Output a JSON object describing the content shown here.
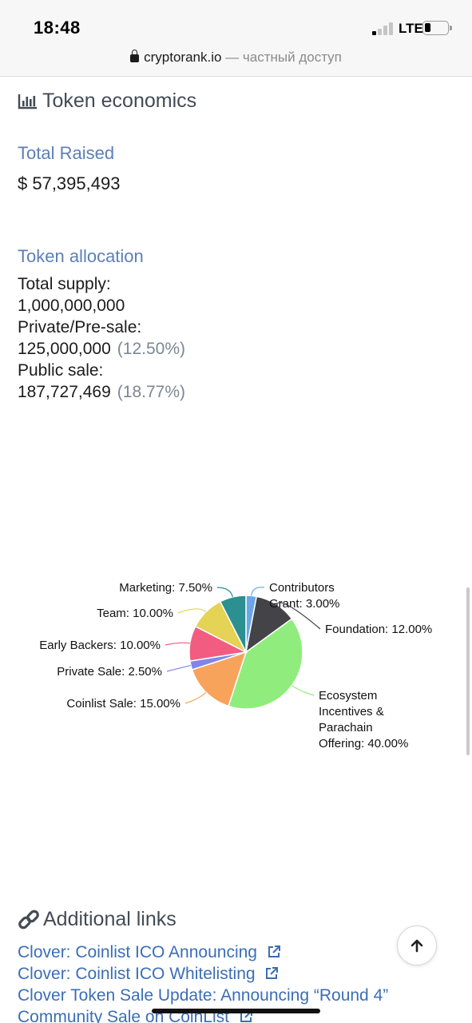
{
  "status_bar": {
    "time": "18:48",
    "network": "LTE"
  },
  "address_bar": {
    "domain": "cryptorank.io",
    "private_note": "— частный доступ"
  },
  "token_economics": {
    "title": "Token economics",
    "icon": "bar-chart-icon",
    "total_raised_label": "Total Raised",
    "total_raised_value": "$ 57,395,493",
    "token_allocation_label": "Token allocation",
    "total_supply_label": "Total supply:",
    "total_supply_value": "1,000,000,000",
    "private_presale_label": "Private/Pre-sale:",
    "private_presale_value": "125,000,000",
    "private_presale_pct": "(12.50%)",
    "public_sale_label": "Public sale:",
    "public_sale_value": "187,727,469",
    "public_sale_pct": "(18.77%)"
  },
  "chart_data": {
    "type": "pie",
    "slices": [
      {
        "label": "Contributors Grant: 3.00%",
        "value": 3.0,
        "color": "#6aa6e8"
      },
      {
        "label": "Foundation: 12.00%",
        "value": 12.0,
        "color": "#434348"
      },
      {
        "label": "Ecosystem Incentives & Parachain Offering: 40.00%",
        "value": 40.0,
        "color": "#90ed7d"
      },
      {
        "label": "Coinlist Sale: 15.00%",
        "value": 15.0,
        "color": "#f7a35c"
      },
      {
        "label": "Private Sale: 2.50%",
        "value": 2.5,
        "color": "#8085e9"
      },
      {
        "label": "Early Backers: 10.00%",
        "value": 10.0,
        "color": "#f15c80"
      },
      {
        "label": "Team: 10.00%",
        "value": 10.0,
        "color": "#e4d354"
      },
      {
        "label": "Marketing: 7.50%",
        "value": 7.5,
        "color": "#2b908f"
      }
    ]
  },
  "additional_links": {
    "title": "Additional links",
    "icon": "link-icon",
    "items": [
      "Clover: Coinlist ICO Announcing",
      "Clover: Coinlist ICO Whitelisting",
      "Clover Token Sale Update: Announcing “Round 4”",
      "Community Sale on CoinList"
    ]
  }
}
